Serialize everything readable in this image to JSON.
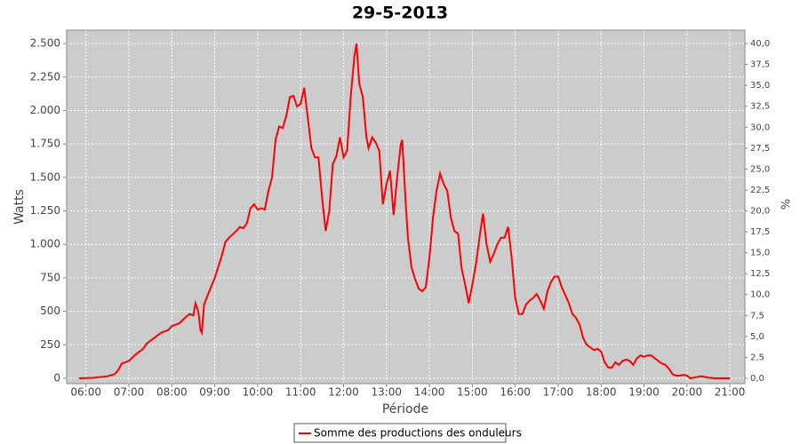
{
  "chart_data": {
    "type": "line",
    "title": "29-5-2013",
    "xlabel": "Période",
    "ylabel": "Watts",
    "y2label": "%",
    "x": [
      "05:50",
      "06:10",
      "06:30",
      "06:40",
      "06:45",
      "06:50",
      "07:00",
      "07:10",
      "07:20",
      "07:25",
      "07:35",
      "07:45",
      "07:55",
      "08:00",
      "08:10",
      "08:20",
      "08:25",
      "08:30",
      "08:33",
      "08:37",
      "08:40",
      "08:42",
      "08:45",
      "08:50",
      "09:00",
      "09:10",
      "09:15",
      "09:20",
      "09:30",
      "09:35",
      "09:40",
      "09:45",
      "09:50",
      "09:55",
      "10:00",
      "10:05",
      "10:10",
      "10:15",
      "10:20",
      "10:25",
      "10:30",
      "10:35",
      "10:40",
      "10:45",
      "10:50",
      "10:55",
      "11:00",
      "11:05",
      "11:10",
      "11:15",
      "11:20",
      "11:25",
      "11:30",
      "11:35",
      "11:40",
      "11:45",
      "11:50",
      "11:55",
      "12:00",
      "12:05",
      "12:10",
      "12:15",
      "12:18",
      "12:22",
      "12:27",
      "12:32",
      "12:35",
      "12:40",
      "12:45",
      "12:50",
      "12:55",
      "13:00",
      "13:05",
      "13:10",
      "13:15",
      "13:20",
      "13:22",
      "13:27",
      "13:30",
      "13:35",
      "13:40",
      "13:45",
      "13:50",
      "13:55",
      "14:00",
      "14:05",
      "14:10",
      "14:15",
      "14:20",
      "14:25",
      "14:30",
      "14:35",
      "14:40",
      "14:45",
      "14:50",
      "14:55",
      "15:00",
      "15:05",
      "15:10",
      "15:15",
      "15:20",
      "15:25",
      "15:30",
      "15:35",
      "15:40",
      "15:45",
      "15:50",
      "15:55",
      "16:00",
      "16:05",
      "16:10",
      "16:15",
      "16:20",
      "16:25",
      "16:30",
      "16:35",
      "16:40",
      "16:45",
      "16:50",
      "16:55",
      "17:00",
      "17:05",
      "17:10",
      "17:15",
      "17:20",
      "17:25",
      "17:30",
      "17:35",
      "17:40",
      "17:45",
      "17:50",
      "17:55",
      "18:00",
      "18:05",
      "18:10",
      "18:15",
      "18:20",
      "18:25",
      "18:30",
      "18:35",
      "18:40",
      "18:45",
      "18:50",
      "18:55",
      "19:00",
      "19:05",
      "19:10",
      "19:15",
      "19:20",
      "19:25",
      "19:30",
      "19:35",
      "19:40",
      "19:45",
      "19:50",
      "19:55",
      "20:00",
      "20:05",
      "20:10",
      "20:20",
      "20:30",
      "20:40",
      "21:00"
    ],
    "series": [
      {
        "name": "Somme des productions des onduleurs",
        "color": "#ff0000",
        "values": [
          0,
          3,
          15,
          30,
          60,
          110,
          130,
          180,
          220,
          260,
          300,
          340,
          360,
          390,
          410,
          460,
          480,
          470,
          560,
          500,
          360,
          340,
          550,
          620,
          750,
          920,
          1020,
          1050,
          1100,
          1130,
          1120,
          1160,
          1270,
          1300,
          1260,
          1270,
          1260,
          1400,
          1500,
          1780,
          1880,
          1870,
          1960,
          2100,
          2110,
          2030,
          2050,
          2170,
          1950,
          1720,
          1650,
          1650,
          1350,
          1100,
          1250,
          1600,
          1660,
          1800,
          1650,
          1700,
          2100,
          2400,
          2500,
          2200,
          2100,
          1800,
          1720,
          1800,
          1760,
          1700,
          1300,
          1450,
          1550,
          1220,
          1500,
          1750,
          1780,
          1300,
          1050,
          830,
          740,
          670,
          650,
          680,
          900,
          1200,
          1400,
          1530,
          1450,
          1400,
          1200,
          1100,
          1080,
          820,
          700,
          560,
          700,
          850,
          1050,
          1230,
          1000,
          870,
          930,
          1000,
          1050,
          1050,
          1130,
          900,
          600,
          480,
          480,
          550,
          580,
          600,
          630,
          580,
          520,
          650,
          720,
          760,
          760,
          680,
          620,
          560,
          480,
          450,
          400,
          300,
          250,
          230,
          210,
          220,
          200,
          120,
          80,
          80,
          120,
          100,
          130,
          140,
          130,
          100,
          150,
          170,
          160,
          170,
          170,
          150,
          130,
          110,
          100,
          70,
          30,
          20,
          20,
          25,
          20,
          0,
          5,
          15,
          5,
          0,
          0
        ]
      }
    ],
    "xlim": [
      "05:33",
      "21:21"
    ],
    "xticks": [
      "06:00",
      "07:00",
      "08:00",
      "09:00",
      "10:00",
      "11:00",
      "12:00",
      "13:00",
      "14:00",
      "15:00",
      "16:00",
      "17:00",
      "18:00",
      "19:00",
      "20:00",
      "21:00"
    ],
    "ylim": [
      -40,
      2600
    ],
    "yticks": [
      0,
      250,
      500,
      750,
      {
        "value": 1000,
        "label": "1.000"
      },
      {
        "value": 1250,
        "label": "1.250"
      },
      {
        "value": 1500,
        "label": "1.500"
      },
      {
        "value": 1750,
        "label": "1.750"
      },
      {
        "value": 2000,
        "label": "2.000"
      },
      {
        "value": 2250,
        "label": "2.250"
      },
      {
        "value": 2500,
        "label": "2.500"
      }
    ],
    "y2lim": [
      -0.64,
      41.6
    ],
    "y2ticks": [
      {
        "value": 0,
        "label": "0,0"
      },
      {
        "value": 2.5,
        "label": "2,5"
      },
      {
        "value": 5,
        "label": "5,0"
      },
      {
        "value": 7.5,
        "label": "7,5"
      },
      {
        "value": 10,
        "label": "10,0"
      },
      {
        "value": 12.5,
        "label": "12,5"
      },
      {
        "value": 15,
        "label": "15,0"
      },
      {
        "value": 17.5,
        "label": "17,5"
      },
      {
        "value": 20,
        "label": "20,0"
      },
      {
        "value": 22.5,
        "label": "22,5"
      },
      {
        "value": 25,
        "label": "25,0"
      },
      {
        "value": 27.5,
        "label": "27,5"
      },
      {
        "value": 30,
        "label": "30,0"
      },
      {
        "value": 32.5,
        "label": "32,5"
      },
      {
        "value": 35,
        "label": "35,0"
      },
      {
        "value": 37.5,
        "label": "37,5"
      },
      {
        "value": 40,
        "label": "40,0"
      }
    ],
    "grid": true,
    "legend": "bottom"
  }
}
